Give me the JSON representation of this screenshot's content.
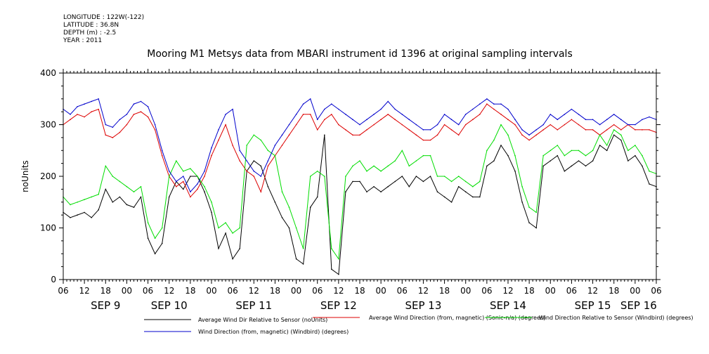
{
  "header": {
    "meta_lines": [
      "LONGITUDE : 122W(-122)",
      "LATITUDE : 36.8N",
      "DEPTH (m) : -2.5",
      "YEAR : 2011"
    ],
    "title": "Mooring M1 Metsys data from MBARI instrument id 1396 at original sampling intervals"
  },
  "chart_data": {
    "type": "line",
    "title": "Mooring M1 Metsys data from MBARI instrument id 1396 at original sampling intervals",
    "ylabel": "noUnits",
    "xlabel": "",
    "ylim": [
      0,
      400
    ],
    "yticks": [
      0,
      100,
      200,
      300,
      400
    ],
    "x_unit": "hours since SEP 9 06:00",
    "xlim": [
      0,
      168
    ],
    "x_tick_labels": [
      "06",
      "12",
      "18",
      "00",
      "06",
      "12",
      "18",
      "00",
      "06",
      "12",
      "18",
      "00",
      "06",
      "12",
      "18",
      "00",
      "06",
      "12",
      "18",
      "00",
      "06",
      "12",
      "18",
      "00",
      "06",
      "12",
      "18",
      "00",
      "06"
    ],
    "day_labels": [
      {
        "label": "SEP 9",
        "x": 12
      },
      {
        "label": "SEP 10",
        "x": 30
      },
      {
        "label": "SEP 11",
        "x": 54
      },
      {
        "label": "SEP 12",
        "x": 78
      },
      {
        "label": "SEP 13",
        "x": 102
      },
      {
        "label": "SEP 14",
        "x": 126
      },
      {
        "label": "SEP 15",
        "x": 150
      },
      {
        "label": "SEP 16",
        "x": 163
      }
    ],
    "grid": false,
    "series": [
      {
        "name": "Average Wind Dir Relative to Sensor (noUnits)",
        "color": "#000000",
        "x": [
          0,
          2,
          4,
          6,
          8,
          10,
          12,
          14,
          16,
          18,
          20,
          22,
          24,
          26,
          28,
          30,
          32,
          34,
          36,
          38,
          40,
          42,
          44,
          46,
          48,
          50,
          52,
          54,
          56,
          58,
          60,
          62,
          64,
          66,
          68,
          70,
          72,
          74,
          76,
          78,
          80,
          82,
          84,
          86,
          88,
          90,
          92,
          94,
          96,
          98,
          100,
          102,
          104,
          106,
          108,
          110,
          112,
          114,
          116,
          118,
          120,
          122,
          124,
          126,
          128,
          130,
          132,
          134,
          136,
          138,
          140,
          142,
          144,
          146,
          148,
          150,
          152,
          154,
          156,
          158,
          160,
          162,
          164,
          166,
          168
        ],
        "values": [
          130,
          120,
          125,
          130,
          120,
          135,
          175,
          150,
          160,
          145,
          140,
          160,
          80,
          50,
          70,
          160,
          190,
          175,
          200,
          200,
          170,
          130,
          60,
          90,
          40,
          60,
          210,
          230,
          220,
          180,
          150,
          120,
          100,
          40,
          30,
          140,
          160,
          280,
          20,
          10,
          170,
          190,
          190,
          170,
          180,
          170,
          180,
          190,
          200,
          180,
          200,
          190,
          200,
          170,
          160,
          150,
          180,
          170,
          160,
          160,
          220,
          230,
          260,
          240,
          210,
          150,
          110,
          100,
          220,
          230,
          240,
          210,
          220,
          230,
          220,
          230,
          260,
          250,
          280,
          270,
          230,
          240,
          220,
          185,
          180
        ]
      },
      {
        "name": "Average Wind Direction (from, magnetic) (Sonic-n/a) (degrees)",
        "color": "#dd0000",
        "x": [
          0,
          2,
          4,
          6,
          8,
          10,
          12,
          14,
          16,
          18,
          20,
          22,
          24,
          26,
          28,
          30,
          32,
          34,
          36,
          38,
          40,
          42,
          44,
          46,
          48,
          50,
          52,
          54,
          56,
          58,
          60,
          62,
          64,
          66,
          68,
          70,
          72,
          74,
          76,
          78,
          80,
          82,
          84,
          86,
          88,
          90,
          92,
          94,
          96,
          98,
          100,
          102,
          104,
          106,
          108,
          110,
          112,
          114,
          116,
          118,
          120,
          122,
          124,
          126,
          128,
          130,
          132,
          134,
          136,
          138,
          140,
          142,
          144,
          146,
          148,
          150,
          152,
          154,
          156,
          158,
          160,
          162,
          164,
          166,
          168
        ],
        "values": [
          300,
          310,
          320,
          315,
          325,
          330,
          280,
          275,
          285,
          300,
          320,
          325,
          315,
          290,
          240,
          200,
          180,
          190,
          160,
          175,
          200,
          240,
          270,
          300,
          260,
          230,
          210,
          200,
          170,
          220,
          240,
          260,
          280,
          300,
          320,
          320,
          290,
          310,
          320,
          300,
          290,
          280,
          280,
          290,
          300,
          310,
          320,
          310,
          300,
          290,
          280,
          270,
          270,
          280,
          300,
          290,
          280,
          300,
          310,
          320,
          340,
          330,
          320,
          310,
          300,
          280,
          270,
          280,
          290,
          300,
          290,
          300,
          310,
          300,
          290,
          290,
          280,
          290,
          300,
          290,
          300,
          290,
          290,
          290,
          285
        ]
      },
      {
        "name": "Wind Direction Relative to Sensor (Windbird) (degrees)",
        "color": "#00dd00",
        "x": [
          0,
          2,
          4,
          6,
          8,
          10,
          12,
          14,
          16,
          18,
          20,
          22,
          24,
          26,
          28,
          30,
          32,
          34,
          36,
          38,
          40,
          42,
          44,
          46,
          48,
          50,
          52,
          54,
          56,
          58,
          60,
          62,
          64,
          66,
          68,
          70,
          72,
          74,
          76,
          78,
          80,
          82,
          84,
          86,
          88,
          90,
          92,
          94,
          96,
          98,
          100,
          102,
          104,
          106,
          108,
          110,
          112,
          114,
          116,
          118,
          120,
          122,
          124,
          126,
          128,
          130,
          132,
          134,
          136,
          138,
          140,
          142,
          144,
          146,
          148,
          150,
          152,
          154,
          156,
          158,
          160,
          162,
          164,
          166,
          168
        ],
        "values": [
          160,
          145,
          150,
          155,
          160,
          165,
          220,
          200,
          190,
          180,
          170,
          180,
          110,
          80,
          100,
          200,
          230,
          210,
          215,
          200,
          180,
          150,
          100,
          110,
          90,
          100,
          260,
          280,
          270,
          250,
          240,
          170,
          140,
          100,
          60,
          200,
          210,
          200,
          60,
          40,
          200,
          220,
          230,
          210,
          220,
          210,
          220,
          230,
          250,
          220,
          230,
          240,
          240,
          200,
          200,
          190,
          200,
          190,
          180,
          190,
          250,
          270,
          300,
          280,
          240,
          180,
          140,
          130,
          240,
          250,
          260,
          240,
          250,
          250,
          240,
          250,
          280,
          260,
          290,
          280,
          250,
          260,
          240,
          210,
          205
        ]
      },
      {
        "name": "Wind Direction (from, magnetic) (Windbird) (degrees)",
        "color": "#0000cc",
        "x": [
          0,
          2,
          4,
          6,
          8,
          10,
          12,
          14,
          16,
          18,
          20,
          22,
          24,
          26,
          28,
          30,
          32,
          34,
          36,
          38,
          40,
          42,
          44,
          46,
          48,
          50,
          52,
          54,
          56,
          58,
          60,
          62,
          64,
          66,
          68,
          70,
          72,
          74,
          76,
          78,
          80,
          82,
          84,
          86,
          88,
          90,
          92,
          94,
          96,
          98,
          100,
          102,
          104,
          106,
          108,
          110,
          112,
          114,
          116,
          118,
          120,
          122,
          124,
          126,
          128,
          130,
          132,
          134,
          136,
          138,
          140,
          142,
          144,
          146,
          148,
          150,
          152,
          154,
          156,
          158,
          160,
          162,
          164,
          166,
          168
        ],
        "values": [
          330,
          320,
          335,
          340,
          345,
          350,
          300,
          295,
          310,
          320,
          340,
          345,
          335,
          300,
          250,
          210,
          190,
          200,
          170,
          185,
          210,
          255,
          290,
          320,
          330,
          250,
          230,
          210,
          200,
          230,
          260,
          280,
          300,
          320,
          340,
          350,
          310,
          330,
          340,
          330,
          320,
          310,
          300,
          310,
          320,
          330,
          345,
          330,
          320,
          310,
          300,
          290,
          290,
          300,
          320,
          310,
          300,
          320,
          330,
          340,
          350,
          340,
          340,
          330,
          310,
          290,
          280,
          290,
          300,
          320,
          310,
          320,
          330,
          320,
          310,
          310,
          300,
          310,
          320,
          310,
          300,
          300,
          310,
          315,
          310
        ]
      }
    ]
  }
}
